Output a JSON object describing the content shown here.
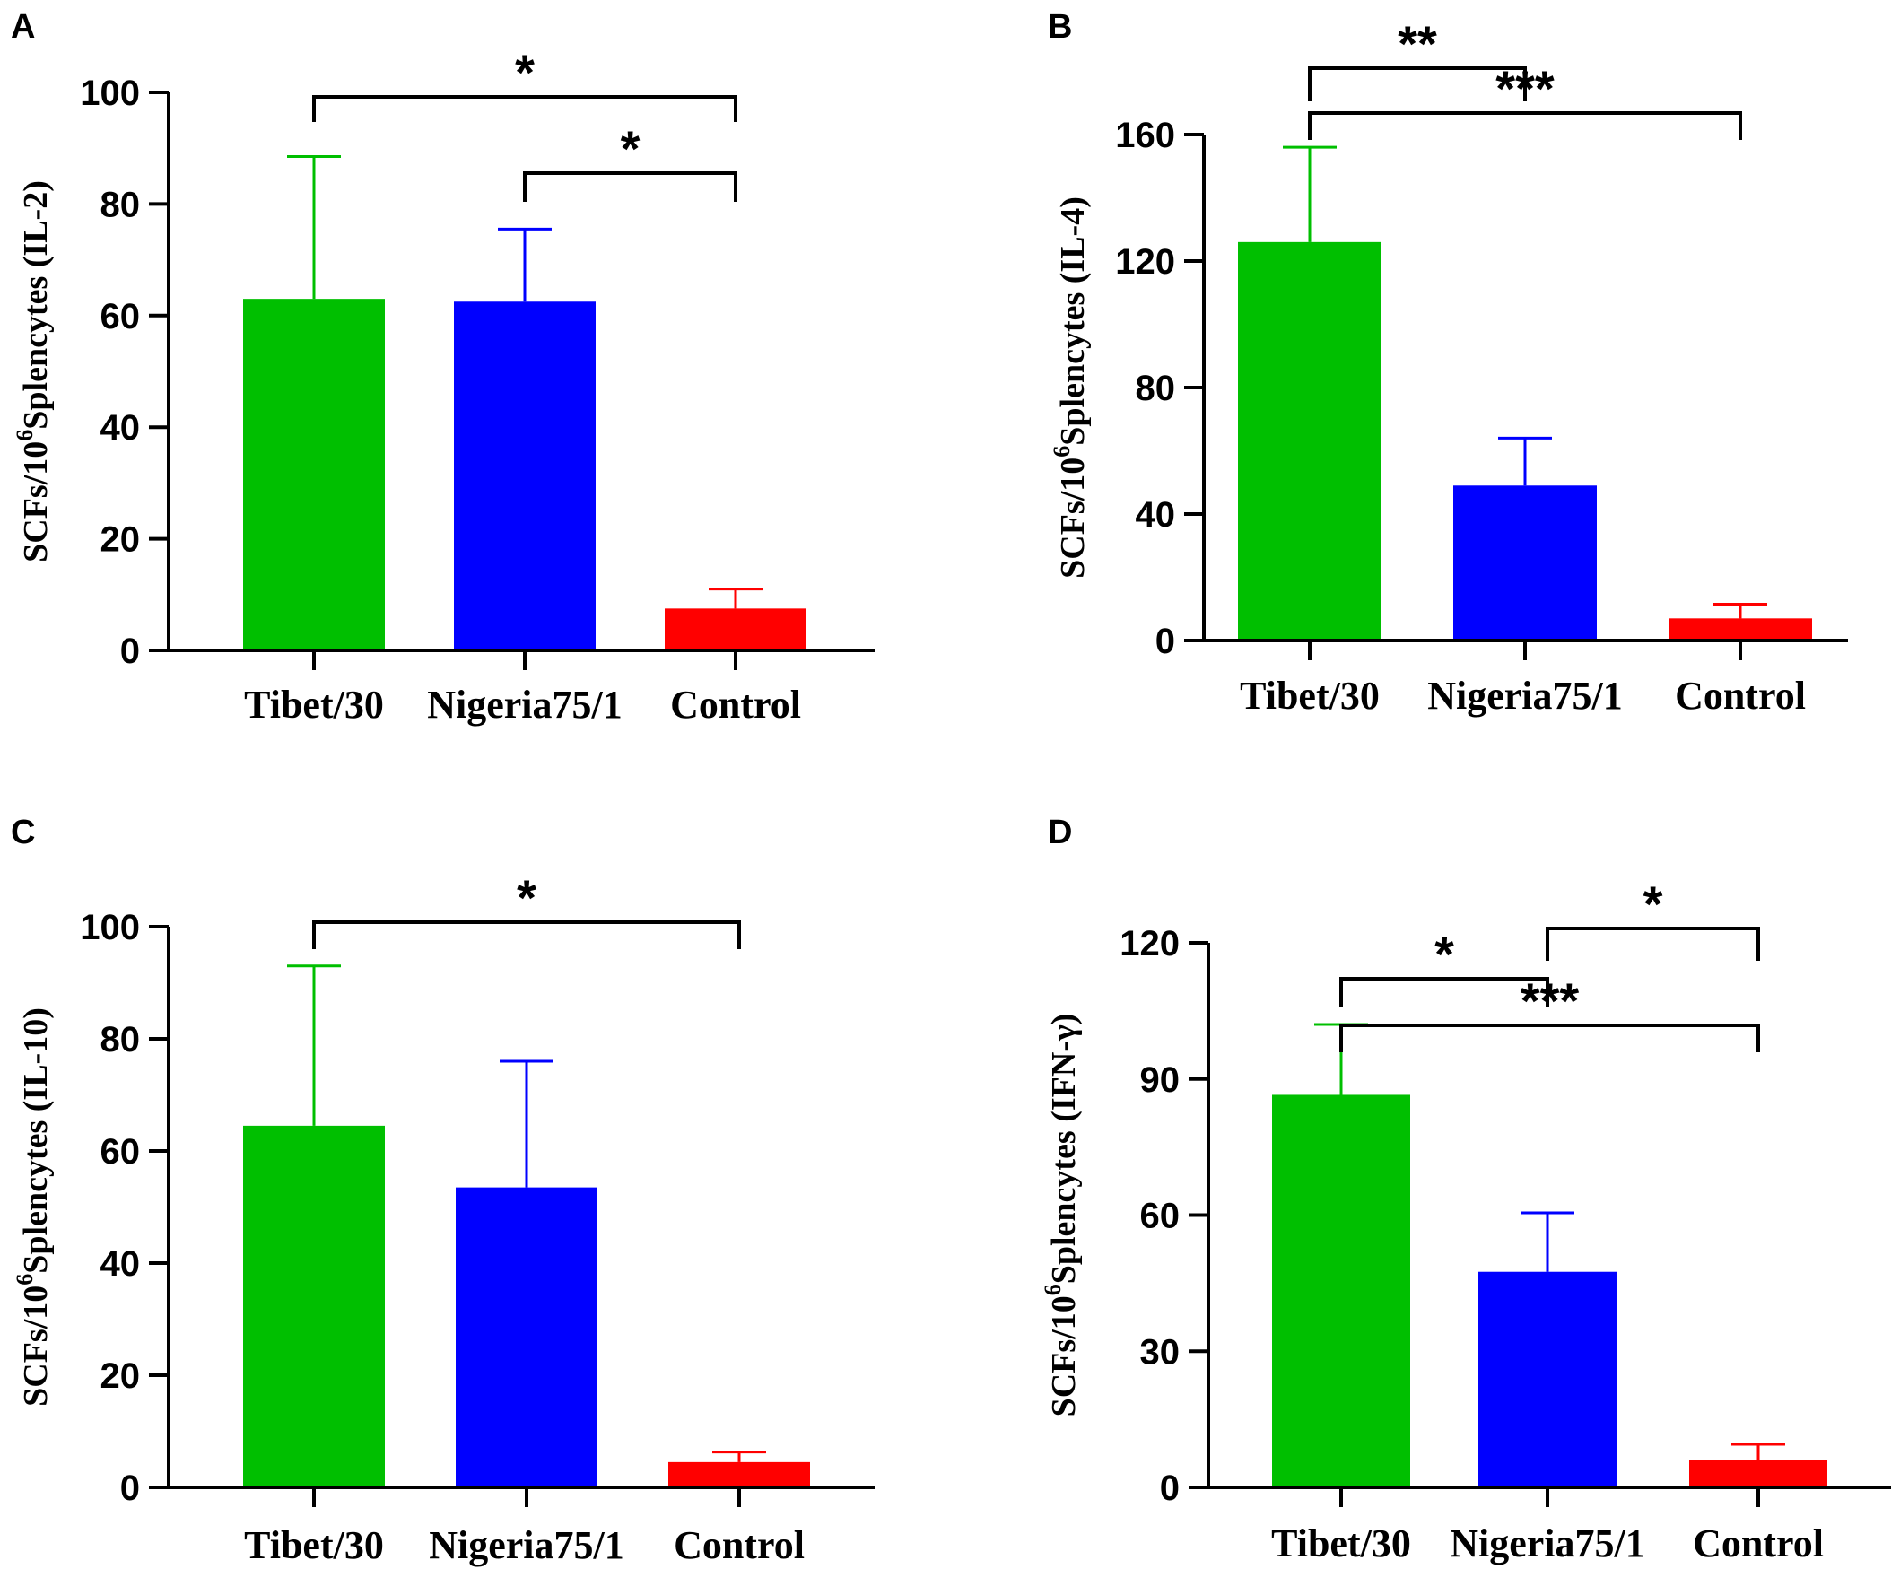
{
  "chart_data": [
    {
      "panel": "A",
      "type": "bar",
      "categories": [
        "Tibet/30",
        "Nigeria75/1",
        "Control"
      ],
      "values": [
        63,
        62.5,
        7.5
      ],
      "errors": [
        25.5,
        13,
        3.5
      ],
      "colors": [
        "#00bf00",
        "#0000ff",
        "#ff0000"
      ],
      "ylabel_main": "SCFs/10",
      "ylabel_sup": "6",
      "ylabel_rest": "Splencytes (IL-2)",
      "ylim": [
        0,
        100
      ],
      "yticks": [
        0,
        20,
        40,
        60,
        80,
        100
      ],
      "significance": [
        {
          "from": 0,
          "to": 2,
          "label": "*",
          "level": 1
        },
        {
          "from": 1,
          "to": 2,
          "label": "*",
          "level": 0
        }
      ]
    },
    {
      "panel": "B",
      "type": "bar",
      "categories": [
        "Tibet/30",
        "Nigeria75/1",
        "Control"
      ],
      "values": [
        126,
        49,
        7
      ],
      "errors": [
        30,
        15,
        4.5
      ],
      "colors": [
        "#00bf00",
        "#0000ff",
        "#ff0000"
      ],
      "ylabel_main": "SCFs/10",
      "ylabel_sup": "6",
      "ylabel_rest": "Splencytes (IL-4)",
      "ylim": [
        0,
        160
      ],
      "yticks": [
        0,
        40,
        80,
        120,
        160
      ],
      "significance": [
        {
          "from": 0,
          "to": 2,
          "label": "***",
          "level": 1
        },
        {
          "from": 0,
          "to": 1,
          "label": "**",
          "level": 0
        }
      ]
    },
    {
      "panel": "C",
      "type": "bar",
      "categories": [
        "Tibet/30",
        "Nigeria75/1",
        "Control"
      ],
      "values": [
        64.5,
        53.5,
        4.5
      ],
      "errors": [
        28.5,
        22.5,
        1.8
      ],
      "colors": [
        "#00bf00",
        "#0000ff",
        "#ff0000"
      ],
      "ylabel_main": "SCFs/10",
      "ylabel_sup": "6",
      "ylabel_rest": "Splencytes (IL-10)",
      "ylim": [
        0,
        100
      ],
      "yticks": [
        0,
        20,
        40,
        60,
        80,
        100
      ],
      "significance": [
        {
          "from": 0,
          "to": 2,
          "label": "*",
          "level": 1
        }
      ]
    },
    {
      "panel": "D",
      "type": "bar",
      "categories": [
        "Tibet/30",
        "Nigeria75/1",
        "Control"
      ],
      "values": [
        86.5,
        47.5,
        6
      ],
      "errors": [
        15.5,
        13,
        3.5
      ],
      "colors": [
        "#00bf00",
        "#0000ff",
        "#ff0000"
      ],
      "ylabel_main": "SCFs/10",
      "ylabel_sup": "6",
      "ylabel_rest": "Splencytes (IFN-γ)",
      "ylim": [
        0,
        120
      ],
      "yticks": [
        0,
        30,
        60,
        90,
        120
      ],
      "significance": [
        {
          "from": 0,
          "to": 2,
          "label": "***",
          "level": 2
        },
        {
          "from": 0,
          "to": 1,
          "label": "*",
          "level": 1
        },
        {
          "from": 1,
          "to": 2,
          "label": "*",
          "level": 0
        }
      ]
    }
  ]
}
